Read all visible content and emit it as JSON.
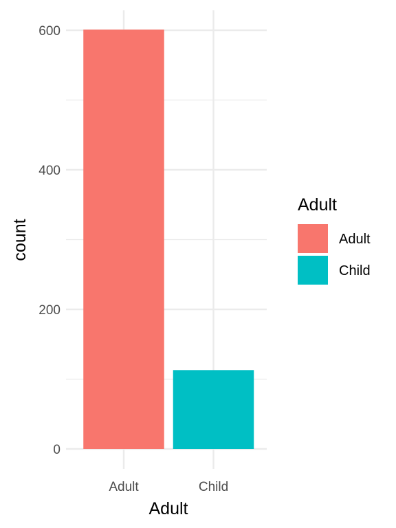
{
  "chart_data": {
    "type": "bar",
    "xlabel": "Adult",
    "ylabel": "count",
    "categories": [
      "Adult",
      "Child"
    ],
    "values": [
      601,
      113
    ],
    "colors": [
      "#F8766D",
      "#00BFC4"
    ],
    "ylim": [
      0,
      630
    ],
    "y_ticks": [
      0,
      200,
      400,
      600
    ],
    "y_tick_labels": [
      "0",
      "200",
      "400",
      "600"
    ],
    "minor_y_ticks": [
      100,
      300,
      500
    ],
    "grid": true,
    "legend": {
      "title": "Adult",
      "position": "right",
      "entries": [
        {
          "label": "Adult",
          "color": "#F8766D"
        },
        {
          "label": "Child",
          "color": "#00BFC4"
        }
      ]
    }
  }
}
